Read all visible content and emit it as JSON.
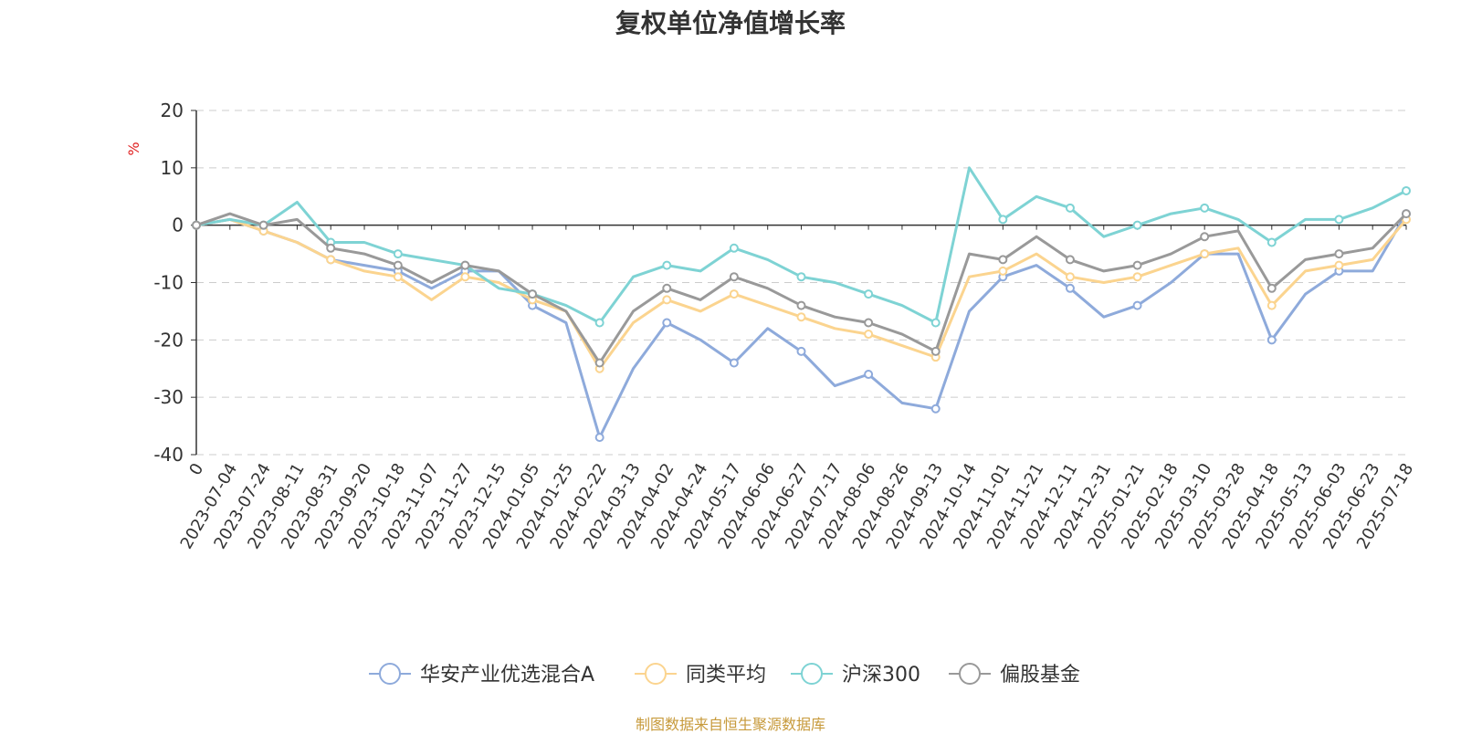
{
  "chart_data": {
    "type": "line",
    "title": "复权单位净值增长率",
    "ylabel": "%",
    "ylim": [
      -40,
      20
    ],
    "yticks": [
      20,
      10,
      0,
      -10,
      -20,
      -30,
      -40
    ],
    "grid": true,
    "legend_position": "bottom",
    "x_ticks": [
      "0",
      "2023-07-04",
      "2023-07-24",
      "2023-08-11",
      "2023-08-31",
      "2023-09-20",
      "2023-10-18",
      "2023-11-07",
      "2023-11-27",
      "2023-12-15",
      "2024-01-05",
      "2024-01-25",
      "2024-02-22",
      "2024-03-13",
      "2024-04-02",
      "2024-04-24",
      "2024-05-17",
      "2024-06-06",
      "2024-06-27",
      "2024-07-17",
      "2024-08-06",
      "2024-08-26",
      "2024-09-13",
      "2024-10-14",
      "2024-11-01",
      "2024-11-21",
      "2024-12-11",
      "2024-12-31",
      "2025-01-21",
      "2025-02-18",
      "2025-03-10",
      "2025-03-28",
      "2025-04-18",
      "2025-05-13",
      "2025-06-03",
      "2025-06-23",
      "2025-07-18"
    ],
    "series": [
      {
        "name": "华安产业优选混合A",
        "color": "#8eaadb",
        "values": [
          0,
          1,
          -1,
          -3,
          -6,
          -7,
          -8,
          -11,
          -8,
          -8,
          -14,
          -17,
          -37,
          -25,
          -17,
          -20,
          -24,
          -18,
          -22,
          -28,
          -26,
          -31,
          -32,
          -15,
          -9,
          -7,
          -11,
          -16,
          -14,
          -10,
          -5,
          -5,
          -20,
          -12,
          -8,
          -8,
          2
        ]
      },
      {
        "name": "同类平均",
        "color": "#fbd48f",
        "values": [
          0,
          1,
          -1,
          -3,
          -6,
          -8,
          -9,
          -13,
          -9,
          -10,
          -13,
          -15,
          -25,
          -17,
          -13,
          -15,
          -12,
          -14,
          -16,
          -18,
          -19,
          -21,
          -23,
          -9,
          -8,
          -5,
          -9,
          -10,
          -9,
          -7,
          -5,
          -4,
          -14,
          -8,
          -7,
          -6,
          1
        ]
      },
      {
        "name": "沪深300",
        "color": "#7ed3d4",
        "values": [
          0,
          1,
          0,
          4,
          -3,
          -3,
          -5,
          -6,
          -7,
          -11,
          -12,
          -14,
          -17,
          -9,
          -7,
          -8,
          -4,
          -6,
          -9,
          -10,
          -12,
          -14,
          -17,
          10,
          1,
          5,
          3,
          -2,
          0,
          2,
          3,
          1,
          -3,
          1,
          1,
          3,
          6
        ]
      },
      {
        "name": "偏股基金",
        "color": "#999999",
        "values": [
          0,
          2,
          0,
          1,
          -4,
          -5,
          -7,
          -10,
          -7,
          -8,
          -12,
          -15,
          -24,
          -15,
          -11,
          -13,
          -9,
          -11,
          -14,
          -16,
          -17,
          -19,
          -22,
          -5,
          -6,
          -2,
          -6,
          -8,
          -7,
          -5,
          -2,
          -1,
          -11,
          -6,
          -5,
          -4,
          2
        ]
      }
    ]
  },
  "source": "制图数据来自恒生聚源数据库"
}
